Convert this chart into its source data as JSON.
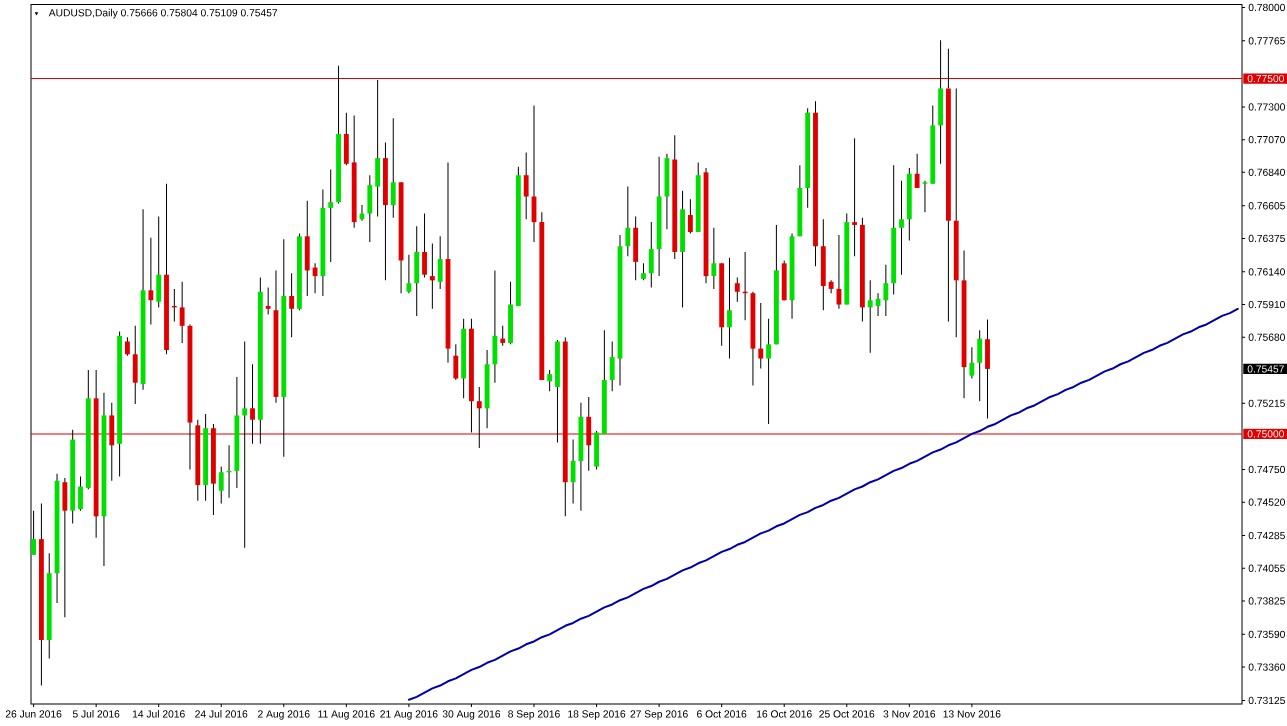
{
  "chart_data": {
    "type": "candlestick",
    "title": "AUDUSD,Daily 0.75666 0.75804 0.75109 0.75457",
    "categories": [
      "26 Jun 2016",
      null,
      null,
      null,
      null,
      null,
      null,
      null,
      "5 Jul 2016",
      null,
      null,
      null,
      null,
      null,
      null,
      null,
      "14 Jul 2016",
      null,
      null,
      null,
      null,
      null,
      null,
      null,
      "24 Jul 2016",
      null,
      null,
      null,
      null,
      null,
      null,
      null,
      "2 Aug 2016",
      null,
      null,
      null,
      null,
      null,
      null,
      null,
      "11 Aug 2016",
      null,
      null,
      null,
      null,
      null,
      null,
      null,
      "21 Aug 2016",
      null,
      null,
      null,
      null,
      null,
      null,
      null,
      "30 Aug 2016",
      null,
      null,
      null,
      null,
      null,
      null,
      null,
      "8 Sep 2016",
      null,
      null,
      null,
      null,
      null,
      null,
      null,
      "18 Sep 2016",
      null,
      null,
      null,
      null,
      null,
      null,
      null,
      "27 Sep 2016",
      null,
      null,
      null,
      null,
      null,
      null,
      null,
      "6 Oct 2016",
      null,
      null,
      null,
      null,
      null,
      null,
      null,
      "16 Oct 2016",
      null,
      null,
      null,
      null,
      null,
      null,
      null,
      "25 Oct 2016",
      null,
      null,
      null,
      null,
      null,
      null,
      null,
      "3 Nov 2016",
      null,
      null,
      null,
      null,
      null,
      null,
      null,
      "13 Nov 2016",
      null,
      null,
      null,
      null,
      null,
      null,
      null,
      null,
      null,
      null,
      null,
      null,
      null,
      null,
      null,
      null,
      null,
      null,
      null,
      null,
      null,
      null,
      null,
      null,
      null,
      null,
      null,
      null,
      null,
      null,
      null,
      null,
      null,
      null
    ],
    "ohlc": [
      [
        0.7415,
        0.7446,
        0.7415,
        0.7426
      ],
      [
        0.7426,
        0.7451,
        0.7323,
        0.7355
      ],
      [
        0.7355,
        0.7416,
        0.7342,
        0.7402
      ],
      [
        0.7402,
        0.7472,
        0.7381,
        0.7467
      ],
      [
        0.7466,
        0.7469,
        0.7371,
        0.7446
      ],
      [
        0.7446,
        0.7503,
        0.7437,
        0.7496
      ],
      [
        0.7447,
        0.747,
        0.7446,
        0.7463
      ],
      [
        0.7462,
        0.7545,
        0.7461,
        0.7525
      ],
      [
        0.7525,
        0.7545,
        0.7427,
        0.7442
      ],
      [
        0.7442,
        0.7529,
        0.7407,
        0.7513
      ],
      [
        0.7513,
        0.7522,
        0.7467,
        0.7492
      ],
      [
        0.7493,
        0.7572,
        0.747,
        0.7569
      ],
      [
        0.7565,
        0.7568,
        0.7555,
        0.7556
      ],
      [
        0.7556,
        0.7576,
        0.7521,
        0.7536
      ],
      [
        0.7535,
        0.7658,
        0.7531,
        0.7601
      ],
      [
        0.7601,
        0.7638,
        0.7577,
        0.7594
      ],
      [
        0.7593,
        0.7653,
        0.7589,
        0.7612
      ],
      [
        0.7612,
        0.7676,
        0.7556,
        0.7559
      ],
      [
        0.759,
        0.7602,
        0.7579,
        0.7589
      ],
      [
        0.7589,
        0.7607,
        0.7564,
        0.7576
      ],
      [
        0.7576,
        0.7577,
        0.7475,
        0.7508
      ],
      [
        0.7506,
        0.751,
        0.7453,
        0.7464
      ],
      [
        0.7464,
        0.7514,
        0.7453,
        0.7504
      ],
      [
        0.7504,
        0.7507,
        0.7443,
        0.7465
      ],
      [
        0.746,
        0.7477,
        0.7451,
        0.7473
      ],
      [
        0.7473,
        0.7492,
        0.7455,
        0.7474
      ],
      [
        0.7474,
        0.754,
        0.7462,
        0.7513
      ],
      [
        0.7513,
        0.7565,
        0.742,
        0.7518
      ],
      [
        0.7518,
        0.7549,
        0.7493,
        0.751
      ],
      [
        0.751,
        0.761,
        0.7493,
        0.76
      ],
      [
        0.759,
        0.7603,
        0.7584,
        0.7588
      ],
      [
        0.7587,
        0.7615,
        0.7522,
        0.7526
      ],
      [
        0.7526,
        0.7637,
        0.7484,
        0.7597
      ],
      [
        0.7597,
        0.7613,
        0.7568,
        0.7588
      ],
      [
        0.7588,
        0.7641,
        0.7587,
        0.7639
      ],
      [
        0.7639,
        0.7664,
        0.7597,
        0.7615
      ],
      [
        0.7617,
        0.762,
        0.7599,
        0.7611
      ],
      [
        0.7611,
        0.7672,
        0.7597,
        0.7659
      ],
      [
        0.7659,
        0.7686,
        0.7621,
        0.7663
      ],
      [
        0.7663,
        0.7759,
        0.7662,
        0.7711
      ],
      [
        0.7711,
        0.7726,
        0.7689,
        0.769
      ],
      [
        0.7691,
        0.7724,
        0.7645,
        0.7649
      ],
      [
        0.7651,
        0.7661,
        0.765,
        0.7655
      ],
      [
        0.7655,
        0.7682,
        0.7635,
        0.7675
      ],
      [
        0.7674,
        0.7749,
        0.7653,
        0.7694
      ],
      [
        0.7694,
        0.7705,
        0.7608,
        0.7661
      ],
      [
        0.7661,
        0.7722,
        0.7652,
        0.7677
      ],
      [
        0.7677,
        0.7677,
        0.7599,
        0.7622
      ],
      [
        0.76,
        0.7626,
        0.7599,
        0.7606
      ],
      [
        0.7606,
        0.7646,
        0.7583,
        0.7628
      ],
      [
        0.7628,
        0.7655,
        0.761,
        0.7612
      ],
      [
        0.7611,
        0.7634,
        0.7588,
        0.7608
      ],
      [
        0.7607,
        0.7639,
        0.7602,
        0.7623
      ],
      [
        0.7623,
        0.7691,
        0.755,
        0.756
      ],
      [
        0.7555,
        0.7563,
        0.7538,
        0.7539
      ],
      [
        0.7539,
        0.7581,
        0.7525,
        0.7574
      ],
      [
        0.7574,
        0.7581,
        0.7501,
        0.7523
      ],
      [
        0.7523,
        0.7533,
        0.749,
        0.7518
      ],
      [
        0.7518,
        0.7559,
        0.7504,
        0.7549
      ],
      [
        0.7549,
        0.7615,
        0.7536,
        0.7569
      ],
      [
        0.7567,
        0.7576,
        0.7562,
        0.7564
      ],
      [
        0.7564,
        0.7607,
        0.7563,
        0.7591
      ],
      [
        0.759,
        0.7688,
        0.759,
        0.7682
      ],
      [
        0.7682,
        0.7698,
        0.7651,
        0.7667
      ],
      [
        0.7667,
        0.7731,
        0.7635,
        0.7649
      ],
      [
        0.7649,
        0.7656,
        0.7538,
        0.7538
      ],
      [
        0.7537,
        0.7545,
        0.753,
        0.7542
      ],
      [
        0.7533,
        0.7566,
        0.7494,
        0.7565
      ],
      [
        0.7565,
        0.7568,
        0.7442,
        0.7466
      ],
      [
        0.7466,
        0.7496,
        0.7451,
        0.7481
      ],
      [
        0.7481,
        0.7522,
        0.7446,
        0.7512
      ],
      [
        0.7512,
        0.7526,
        0.7474,
        0.7492
      ],
      [
        0.7477,
        0.7502,
        0.7475,
        0.7501
      ],
      [
        0.75,
        0.7573,
        0.75,
        0.7538
      ],
      [
        0.7538,
        0.7565,
        0.753,
        0.7554
      ],
      [
        0.7553,
        0.764,
        0.7534,
        0.7632
      ],
      [
        0.7632,
        0.7674,
        0.7625,
        0.7645
      ],
      [
        0.7645,
        0.7653,
        0.7608,
        0.7621
      ],
      [
        0.7609,
        0.762,
        0.7608,
        0.7613
      ],
      [
        0.7613,
        0.7649,
        0.7603,
        0.763
      ],
      [
        0.763,
        0.7695,
        0.7611,
        0.7667
      ],
      [
        0.7667,
        0.7697,
        0.7644,
        0.7694
      ],
      [
        0.7693,
        0.771,
        0.7623,
        0.7628
      ],
      [
        0.7628,
        0.7671,
        0.7589,
        0.7658
      ],
      [
        0.7654,
        0.7665,
        0.7641,
        0.7642
      ],
      [
        0.7642,
        0.7691,
        0.7642,
        0.7682
      ],
      [
        0.7684,
        0.7687,
        0.7606,
        0.7611
      ],
      [
        0.7611,
        0.7645,
        0.7602,
        0.762
      ],
      [
        0.762,
        0.762,
        0.7562,
        0.7575
      ],
      [
        0.7575,
        0.7624,
        0.7553,
        0.7587
      ],
      [
        0.7606,
        0.761,
        0.7593,
        0.76
      ],
      [
        0.76,
        0.7628,
        0.758,
        0.7599
      ],
      [
        0.7599,
        0.76,
        0.7534,
        0.756
      ],
      [
        0.756,
        0.7592,
        0.7546,
        0.7553
      ],
      [
        0.7553,
        0.7581,
        0.7507,
        0.7563
      ],
      [
        0.7563,
        0.7647,
        0.7563,
        0.7615
      ],
      [
        0.762,
        0.7622,
        0.7594,
        0.7594
      ],
      [
        0.7594,
        0.7641,
        0.7581,
        0.7639
      ],
      [
        0.7639,
        0.7689,
        0.7639,
        0.7673
      ],
      [
        0.7673,
        0.7729,
        0.7659,
        0.7726
      ],
      [
        0.7726,
        0.7734,
        0.7618,
        0.7632
      ],
      [
        0.7632,
        0.7651,
        0.7587,
        0.7604
      ],
      [
        0.7607,
        0.7608,
        0.7599,
        0.7602
      ],
      [
        0.7602,
        0.764,
        0.7588,
        0.7591
      ],
      [
        0.7591,
        0.7655,
        0.7591,
        0.7649
      ],
      [
        0.7649,
        0.7708,
        0.7625,
        0.7647
      ],
      [
        0.7647,
        0.7652,
        0.7579,
        0.7589
      ],
      [
        0.7589,
        0.7608,
        0.7557,
        0.7594
      ],
      [
        0.759,
        0.7599,
        0.7583,
        0.7595
      ],
      [
        0.7594,
        0.7619,
        0.7583,
        0.7606
      ],
      [
        0.7606,
        0.7689,
        0.7598,
        0.7645
      ],
      [
        0.7645,
        0.7678,
        0.7612,
        0.7651
      ],
      [
        0.7651,
        0.7687,
        0.7636,
        0.7683
      ],
      [
        0.7683,
        0.7697,
        0.7673,
        0.7673
      ],
      [
        0.7676,
        0.7678,
        0.7656,
        0.7677
      ],
      [
        0.7676,
        0.7731,
        0.7676,
        0.7717
      ],
      [
        0.7717,
        0.7777,
        0.769,
        0.7743
      ],
      [
        0.7743,
        0.7771,
        0.7579,
        0.765
      ],
      [
        0.765,
        0.7743,
        0.7568,
        0.7608
      ],
      [
        0.7608,
        0.7629,
        0.7525,
        0.7547
      ],
      [
        0.7541,
        0.7561,
        0.7539,
        0.755
      ],
      [
        0.755,
        0.7573,
        0.7523,
        0.7567
      ],
      [
        0.75666,
        0.75804,
        0.75109,
        0.75457
      ],
      null,
      null,
      null,
      null,
      null,
      null,
      null,
      null,
      null,
      null,
      null,
      null,
      null,
      null,
      null,
      null,
      null,
      null,
      null,
      null,
      null,
      null,
      null,
      null,
      null,
      null,
      null,
      null,
      null,
      null,
      null,
      null
    ],
    "colors": [
      "#00e000",
      "#e00000",
      "#00e000",
      "#00e000",
      "#e00000",
      "#00e000",
      "#00e000",
      "#00e000",
      "#e00000",
      "#00e000",
      "#e00000",
      "#00e000",
      "#e00000",
      "#e00000",
      "#00e000",
      "#e00000",
      "#00e000",
      "#e00000",
      "#e00000",
      "#e00000",
      "#e00000",
      "#e00000",
      "#00e000",
      "#e00000",
      "#00e000",
      "#00e000",
      "#00e000",
      "#00e000",
      "#e00000",
      "#00e000",
      "#e00000",
      "#e00000",
      "#00e000",
      "#e00000",
      "#00e000",
      "#e00000",
      "#e00000",
      "#00e000",
      "#00e000",
      "#00e000",
      "#e00000",
      "#e00000",
      "#00e000",
      "#00e000",
      "#00e000",
      "#e00000",
      "#00e000",
      "#e00000",
      "#00e000",
      "#00e000",
      "#e00000",
      "#e00000",
      "#00e000",
      "#e00000",
      "#e00000",
      "#00e000",
      "#e00000",
      "#e00000",
      "#00e000",
      "#00e000",
      "#e00000",
      "#00e000",
      "#00e000",
      "#e00000",
      "#e00000",
      "#e00000",
      "#00e000",
      "#00e000",
      "#e00000",
      "#00e000",
      "#00e000",
      "#e00000",
      "#00e000",
      "#00e000",
      "#00e000",
      "#00e000",
      "#00e000",
      "#e00000",
      "#00e000",
      "#00e000",
      "#00e000",
      "#00e000",
      "#e00000",
      "#00e000",
      "#e00000",
      "#00e000",
      "#e00000",
      "#00e000",
      "#e00000",
      "#00e000",
      "#e00000",
      "#e00000",
      "#e00000",
      "#e00000",
      "#00e000",
      "#00e000",
      "#e00000",
      "#00e000",
      "#00e000",
      "#00e000",
      "#e00000",
      "#e00000",
      "#e00000",
      "#e00000",
      "#00e000",
      "#e00000",
      "#e00000",
      "#00e000",
      "#00e000",
      "#00e000",
      "#00e000",
      "#00e000",
      "#00e000",
      "#e00000",
      "#00e000",
      "#00e000",
      "#00e000",
      "#e00000",
      "#e00000",
      "#e00000",
      "#00e000",
      "#00e000",
      "#e00000",
      null,
      null,
      null,
      null,
      null,
      null,
      null,
      null,
      null,
      null,
      null,
      null,
      null,
      null,
      null,
      null,
      null,
      null,
      null,
      null,
      null,
      null,
      null,
      null,
      null,
      null,
      null,
      null,
      null,
      null,
      null,
      null
    ],
    "series": [
      {
        "type": "line",
        "color": "#0000aa",
        "values": [
          null,
          null,
          null,
          null,
          null,
          null,
          null,
          null,
          null,
          null,
          null,
          null,
          null,
          null,
          null,
          null,
          null,
          null,
          null,
          null,
          null,
          null,
          null,
          null,
          null,
          null,
          null,
          null,
          null,
          null,
          null,
          null,
          null,
          null,
          null,
          null,
          null,
          null,
          null,
          null,
          null,
          null,
          null,
          null,
          null,
          null,
          null,
          null,
          0.7313,
          0.7315,
          0.7318,
          0.7321,
          0.7323,
          0.7326,
          0.7328,
          0.7331,
          0.7334,
          0.7336,
          0.7339,
          0.7341,
          0.7344,
          0.7347,
          0.7349,
          0.7352,
          0.7354,
          0.7357,
          0.7359,
          0.7362,
          0.7365,
          0.7367,
          0.737,
          0.7372,
          0.7375,
          0.7378,
          0.738,
          0.7383,
          0.7385,
          0.7388,
          0.7391,
          0.7393,
          0.7396,
          0.7398,
          0.7401,
          0.7404,
          0.7406,
          0.7409,
          0.7411,
          0.7414,
          0.7417,
          0.7419,
          0.7422,
          0.7424,
          0.7427,
          0.743,
          0.7432,
          0.7435,
          0.7437,
          0.744,
          0.7443,
          0.7445,
          0.7448,
          0.745,
          0.7453,
          0.7455,
          0.7458,
          0.7461,
          0.7463,
          0.7466,
          0.7468,
          0.7471,
          0.7474,
          0.7476,
          0.7479,
          0.7481,
          0.7484,
          0.7487,
          0.7489,
          0.7492,
          0.7494,
          0.7497,
          0.75,
          0.7502,
          0.7505,
          0.7507,
          0.751,
          0.7513,
          0.7515,
          0.7518,
          0.752,
          0.7523,
          0.7526,
          0.7528,
          0.7531,
          0.7533,
          0.7536,
          0.7538,
          0.7541,
          0.7544,
          0.7546,
          0.7549,
          0.7551,
          0.7554,
          0.7557,
          0.7559,
          0.7562,
          0.7564,
          0.7567,
          0.757,
          0.7572,
          0.7575,
          0.7577,
          0.758,
          0.7583,
          0.7585,
          0.7588
        ]
      }
    ],
    "ylim": [
      0.731,
      0.7802
    ],
    "yticks": [
      {
        "value": 0.78,
        "label": "0.78000"
      },
      0.77765,
      {
        "value": 0.773,
        "label": "0.77300"
      },
      {
        "value": 0.7707,
        "label": "0.77070"
      },
      {
        "value": 0.7684,
        "label": "0.76840"
      },
      0.76605,
      0.76375,
      {
        "value": 0.7614,
        "label": "0.76140"
      },
      {
        "value": 0.7591,
        "label": "0.75910"
      },
      {
        "value": 0.7568,
        "label": "0.75680"
      },
      0.75215,
      {
        "value": 0.7475,
        "label": "0.74750"
      },
      {
        "value": 0.7452,
        "label": "0.74520"
      },
      0.74285,
      0.74055,
      0.73825,
      {
        "value": 0.7359,
        "label": "0.73590"
      },
      {
        "value": 0.7336,
        "label": "0.73360"
      },
      0.73125
    ],
    "ref_lines": [
      {
        "axis": "y",
        "value": 0.775,
        "label": "0.77500",
        "color": "#e00000"
      },
      {
        "axis": "y",
        "value": 0.75,
        "label": "0.75000",
        "color": "#e00000"
      }
    ],
    "annotations": [
      "0.75457"
    ]
  }
}
